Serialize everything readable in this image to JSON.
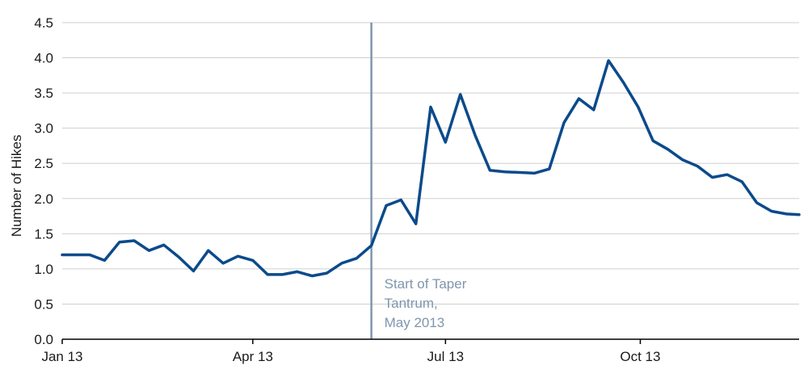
{
  "chart_data": {
    "type": "line",
    "title": "",
    "xlabel": "",
    "ylabel": "Number of Hikes",
    "ylim": [
      0,
      4.5
    ],
    "yticks": [
      "0.0",
      "0.5",
      "1.0",
      "1.5",
      "2.0",
      "2.5",
      "3.0",
      "3.5",
      "4.0",
      "4.5"
    ],
    "xlim": [
      "2013-01-01",
      "2013-12-15"
    ],
    "xticks": [
      {
        "date": "2013-01-01",
        "label": "Jan 13"
      },
      {
        "date": "2013-04-01",
        "label": "Apr 13"
      },
      {
        "date": "2013-07-01",
        "label": "Jul 13"
      },
      {
        "date": "2013-10-01",
        "label": "Oct 13"
      }
    ],
    "grid": true,
    "series": [
      {
        "color": "#0b4a8b",
        "points": [
          [
            "2013-01-01",
            1.2
          ],
          [
            "2013-01-07",
            1.2
          ],
          [
            "2013-01-14",
            1.2
          ],
          [
            "2013-01-21",
            1.12
          ],
          [
            "2013-01-28",
            1.38
          ],
          [
            "2013-02-04",
            1.4
          ],
          [
            "2013-02-11",
            1.26
          ],
          [
            "2013-02-18",
            1.34
          ],
          [
            "2013-02-25",
            1.17
          ],
          [
            "2013-03-04",
            0.97
          ],
          [
            "2013-03-11",
            1.26
          ],
          [
            "2013-03-18",
            1.08
          ],
          [
            "2013-03-25",
            1.18
          ],
          [
            "2013-04-01",
            1.12
          ],
          [
            "2013-04-08",
            0.92
          ],
          [
            "2013-04-15",
            0.92
          ],
          [
            "2013-04-22",
            0.96
          ],
          [
            "2013-04-29",
            0.9
          ],
          [
            "2013-05-06",
            0.94
          ],
          [
            "2013-05-13",
            1.08
          ],
          [
            "2013-05-20",
            1.15
          ],
          [
            "2013-05-27",
            1.33
          ],
          [
            "2013-06-03",
            1.9
          ],
          [
            "2013-06-10",
            1.98
          ],
          [
            "2013-06-17",
            1.64
          ],
          [
            "2013-06-24",
            3.3
          ],
          [
            "2013-07-01",
            2.8
          ],
          [
            "2013-07-08",
            3.48
          ],
          [
            "2013-07-15",
            2.9
          ],
          [
            "2013-07-22",
            2.4
          ],
          [
            "2013-07-29",
            2.38
          ],
          [
            "2013-08-05",
            2.37
          ],
          [
            "2013-08-12",
            2.36
          ],
          [
            "2013-08-19",
            2.42
          ],
          [
            "2013-08-26",
            3.08
          ],
          [
            "2013-09-02",
            3.42
          ],
          [
            "2013-09-09",
            3.26
          ],
          [
            "2013-09-16",
            3.96
          ],
          [
            "2013-09-23",
            3.65
          ],
          [
            "2013-09-30",
            3.3
          ],
          [
            "2013-10-07",
            2.82
          ],
          [
            "2013-10-14",
            2.7
          ],
          [
            "2013-10-21",
            2.55
          ],
          [
            "2013-10-28",
            2.46
          ],
          [
            "2013-11-04",
            2.3
          ],
          [
            "2013-11-11",
            2.34
          ],
          [
            "2013-11-18",
            2.24
          ],
          [
            "2013-11-25",
            1.94
          ],
          [
            "2013-12-02",
            1.82
          ],
          [
            "2013-12-09",
            1.78
          ],
          [
            "2013-12-15",
            1.77
          ]
        ]
      }
    ],
    "event_line": {
      "date": "2013-05-27",
      "color": "#7f96ad",
      "label_lines": [
        "Start of Taper",
        "Tantrum,",
        "May 2013"
      ]
    }
  }
}
